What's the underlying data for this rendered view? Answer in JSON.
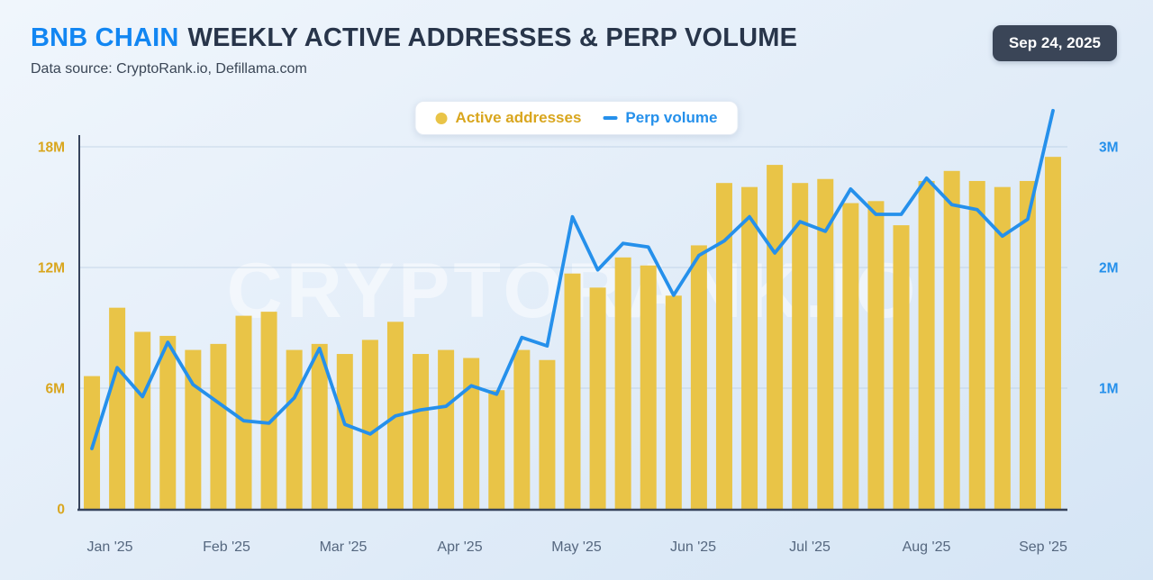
{
  "header": {
    "brand": "BNB CHAIN",
    "title": "WEEKLY ACTIVE ADDRESSES & PERP VOLUME",
    "date_badge": "Sep 24, 2025",
    "data_source": "Data source: CryptoRank.io, Defillama.com"
  },
  "legend": {
    "active_addresses_label": "Active addresses",
    "perp_volume_label": "Perp volume"
  },
  "watermark": "CRYPTORANK.IO",
  "colors": {
    "brand_blue": "#1286F2",
    "title_dark": "#28354A",
    "badge_bg": "#3A4557",
    "badge_text": "#FFFFFF",
    "bar": "#E9C447",
    "line": "#2590EB",
    "left_axis_label": "#D9A61E",
    "right_axis_label": "#2590EB",
    "axis_line": "#36435C",
    "grid_line": "#AEC6DD",
    "month_label": "#55677F",
    "watermark": "#FFFFFF"
  },
  "chart_data": {
    "type": "bar+line",
    "title": "BNB CHAIN WEEKLY ACTIVE ADDRESSES & PERP VOLUME",
    "subtitle": "Data source: CryptoRank.io, Defillama.com",
    "grid": "horizontal",
    "legend_position": "top-center",
    "x_months": [
      "Jan '25",
      "Feb '25",
      "Mar '25",
      "Apr '25",
      "May '25",
      "Jun '25",
      "Jul '25",
      "Aug '25",
      "Sep '25"
    ],
    "left_axis": {
      "series": "Active addresses",
      "unit": "M",
      "ticks": [
        {
          "value": 0,
          "label": "0"
        },
        {
          "value": 6,
          "label": "6M"
        },
        {
          "value": 12,
          "label": "12M"
        },
        {
          "value": 18,
          "label": "18M"
        }
      ],
      "range": [
        0,
        20.2
      ]
    },
    "right_axis": {
      "series": "Perp volume",
      "unit": "M",
      "ticks": [
        {
          "value": 1,
          "label": "1M"
        },
        {
          "value": 2,
          "label": "2M"
        },
        {
          "value": 3,
          "label": "3M"
        }
      ],
      "range": [
        0,
        3.37
      ]
    },
    "series": [
      {
        "name": "Active addresses",
        "type": "bar",
        "axis": "left",
        "unit": "M",
        "values": [
          6.6,
          10.0,
          8.8,
          8.6,
          7.9,
          8.2,
          9.6,
          9.8,
          7.9,
          8.2,
          7.7,
          8.4,
          9.3,
          7.7,
          7.9,
          7.5,
          5.9,
          7.9,
          7.4,
          11.7,
          11.0,
          12.5,
          12.1,
          10.6,
          13.1,
          16.2,
          16.0,
          17.1,
          16.2,
          16.4,
          15.2,
          15.3,
          14.1,
          16.3,
          16.8,
          16.3,
          16.0,
          16.3,
          17.5
        ]
      },
      {
        "name": "Perp volume",
        "type": "line",
        "axis": "right",
        "unit": "M",
        "values": [
          0.5,
          1.17,
          0.93,
          1.38,
          1.03,
          0.88,
          0.73,
          0.71,
          0.92,
          1.33,
          0.7,
          0.62,
          0.77,
          0.82,
          0.85,
          1.02,
          0.95,
          1.42,
          1.35,
          2.42,
          1.98,
          2.2,
          2.17,
          1.77,
          2.1,
          2.22,
          2.42,
          2.12,
          2.38,
          2.3,
          2.65,
          2.44,
          2.44,
          2.74,
          2.52,
          2.48,
          2.26,
          2.4,
          3.3
        ]
      }
    ]
  }
}
